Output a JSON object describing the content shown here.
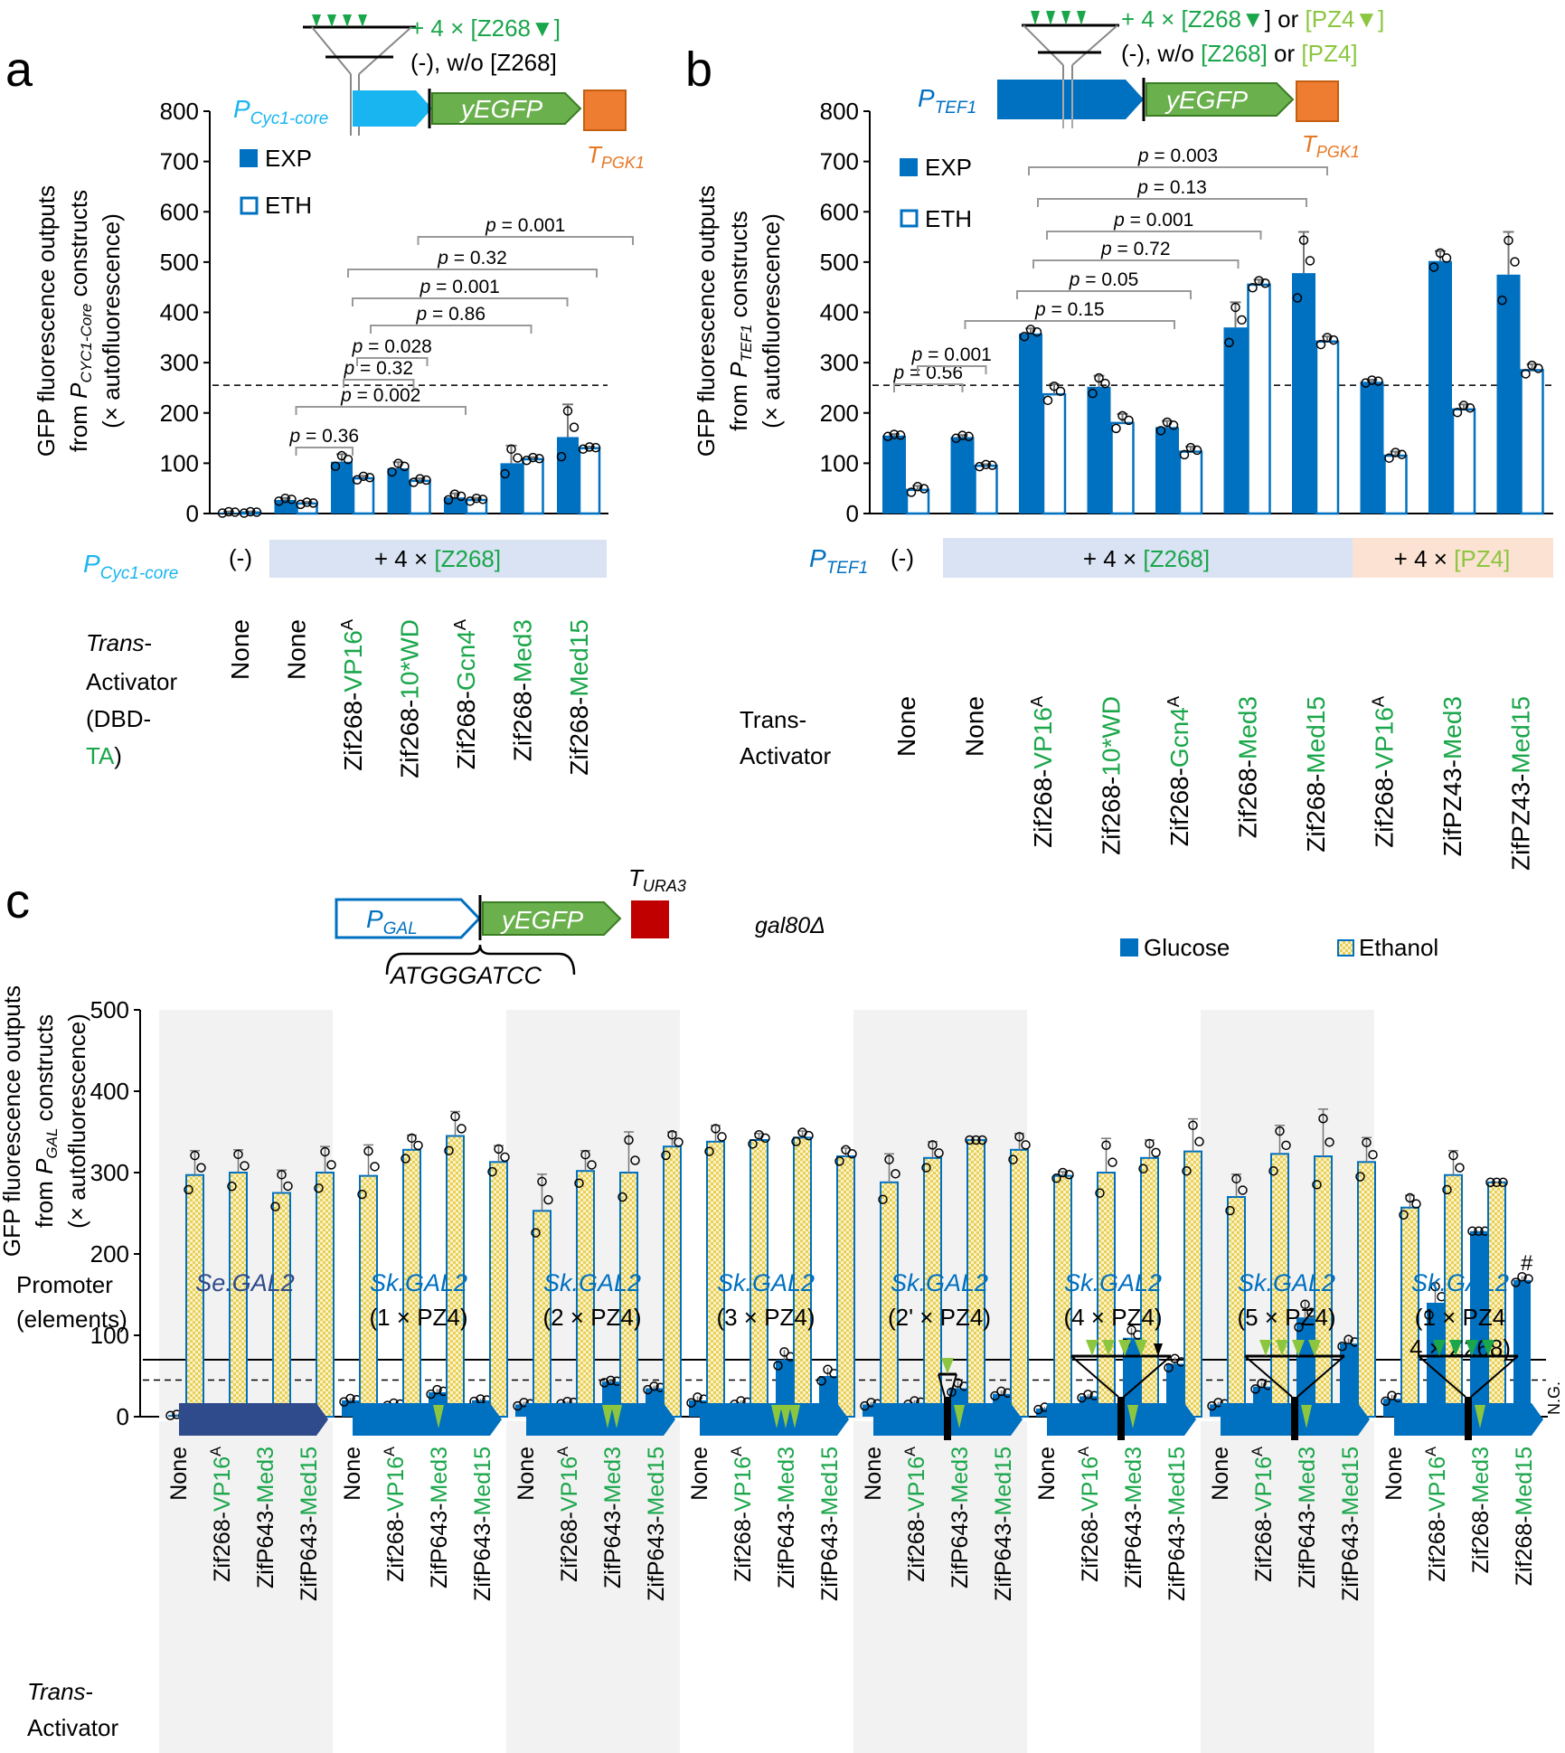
{
  "panels": {
    "a": "a",
    "b": "b",
    "c": "c"
  },
  "chart_data": [
    {
      "type": "bar",
      "panel": "a",
      "ylabel": "GFP fluorescence outputs from PCYC1-Core constructs (× autofluorescence)",
      "ylim": [
        0,
        800
      ],
      "yticks": [
        "0",
        "100",
        "200",
        "300",
        "400",
        "500",
        "600",
        "700",
        "800"
      ],
      "threshold_dashed": 255,
      "legend": [
        "EXP",
        "ETH"
      ],
      "promoter_label": "PCyc1-core",
      "promoter_main": "P",
      "promoter_sub": "Cyc1-core",
      "neg_label": "(-)",
      "element_band": "+ 4 × [Z268]",
      "xlabel": "Trans-Activator (DBD-TA)",
      "xlabel_lines": [
        "Trans-",
        "Activator",
        "(DBD-",
        "TA)"
      ],
      "categories": [
        "None",
        "None",
        "Zif268-VP16A",
        "Zif268-10*WD",
        "Zif268-Gcn4A",
        "Zif268-Med3",
        "Zif268-Med15"
      ],
      "series": [
        {
          "name": "EXP",
          "values": [
            2,
            27,
            103,
            90,
            32,
            100,
            152
          ],
          "err": [
            2,
            4,
            15,
            12,
            8,
            35,
            65
          ]
        },
        {
          "name": "ETH",
          "values": [
            2,
            20,
            70,
            65,
            27,
            108,
            130
          ],
          "err": [
            2,
            3,
            5,
            5,
            4,
            4,
            3
          ]
        }
      ],
      "pvalues": [
        "p = 0.36",
        "p = 0.002",
        "p = 0.32",
        "p = 0.028",
        "p = 0.86",
        "p = 0.001",
        "p = 0.32",
        "p = 0.001"
      ],
      "construct": {
        "gene": "yEGFP",
        "terminator": "TPGK1",
        "term_main": "T",
        "term_sub": "PGK1",
        "insert_line1": "+ 4 × [Z268",
        "insert_line1_end": "]",
        "insert_line2": "(-), w/o [Z268]"
      }
    },
    {
      "type": "bar",
      "panel": "b",
      "ylabel": "GFP fluorescence outputs from PTEF1 constructs (× autofluorescence)",
      "ylim": [
        0,
        800
      ],
      "yticks": [
        "0",
        "100",
        "200",
        "300",
        "400",
        "500",
        "600",
        "700",
        "800"
      ],
      "threshold_dashed": 255,
      "legend": [
        "EXP",
        "ETH"
      ],
      "promoter_label": "PTEF1",
      "promoter_main": "P",
      "promoter_sub": "TEF1",
      "neg_label": "(-)",
      "element_band1": "+ 4 × [Z268]",
      "element_band2": "+ 4 × [PZ4]",
      "xlabel": "Trans-Activator",
      "xlabel_lines": [
        "Trans-",
        "Activator"
      ],
      "categories": [
        "None",
        "None",
        "Zif268-VP16A",
        "Zif268-10*WD",
        "Zif268-Gcn4A",
        "Zif268-Med3",
        "Zif268-Med15",
        "Zif268-VP16A",
        "ZifPZ43-Med3",
        "ZifPZ43-Med15"
      ],
      "series": [
        {
          "name": "EXP",
          "values": [
            155,
            152,
            358,
            252,
            172,
            370,
            478,
            262,
            502,
            475
          ],
          "err": [
            3,
            4,
            10,
            22,
            12,
            50,
            82,
            4,
            20,
            85
          ]
        },
        {
          "name": "ETH",
          "values": [
            47,
            95,
            237,
            180,
            123,
            455,
            342,
            115,
            207,
            285
          ],
          "err": [
            8,
            3,
            20,
            18,
            10,
            10,
            10,
            8,
            10,
            12
          ]
        }
      ],
      "pvalues": [
        "p = 0.56",
        "p = 0.001",
        "p = 0.15",
        "p = 0.05",
        "p = 0.72",
        "p = 0.001",
        "p = 0.13",
        "p = 0.003"
      ],
      "construct": {
        "gene": "yEGFP",
        "terminator": "TPGK1",
        "term_main": "T",
        "term_sub": "PGK1",
        "insert_line1a": "+ 4 × [Z268",
        "insert_line1b": "] or ",
        "insert_line1c": "[PZ4",
        "insert_line1d": "]",
        "insert_line2a": "(-), w/o ",
        "insert_line2b": "[Z268]",
        "insert_line2c": " or ",
        "insert_line2d": "[PZ4]"
      }
    },
    {
      "type": "bar",
      "panel": "c",
      "ylabel": "GFP fluorescence outputs from PGAL constructs (× autofluorescence)",
      "ylim": [
        0,
        500
      ],
      "yticks": [
        "0",
        "100",
        "200",
        "300",
        "400",
        "500"
      ],
      "threshold_solid": 70,
      "threshold_dashed": 45,
      "legend": [
        "Glucose",
        "Ethanol"
      ],
      "strain": "gal80Δ",
      "construct": {
        "promoter": "PGAL",
        "prom_main": "P",
        "prom_sub": "GAL",
        "gene": "yEGFP",
        "terminator": "TURA3",
        "term_main": "T",
        "term_sub": "URA3",
        "junction": "ATGGGATCC"
      },
      "xlabel_lines": [
        "Trans-",
        "Activator"
      ],
      "promoter_title": [
        "Promoter",
        "(elements)"
      ],
      "groups": [
        {
          "promoter": "Se.GAL2",
          "elements": ""
        },
        {
          "promoter": "Sk.GAL2",
          "elements": "(1 × PZ4)"
        },
        {
          "promoter": "Sk.GAL2",
          "elements": "(2 × PZ4)"
        },
        {
          "promoter": "Sk.GAL2",
          "elements": "(3 × PZ4)"
        },
        {
          "promoter": "Sk.GAL2",
          "elements": "(2' × PZ4)"
        },
        {
          "promoter": "Sk.GAL2",
          "elements": "(4 × PZ4)"
        },
        {
          "promoter": "Sk.GAL2",
          "elements": "(5 × PZ4)"
        },
        {
          "promoter": "Sk.GAL2",
          "elements": "(1 × PZ4 4 × Z268)",
          "elements_l1": "(1 × PZ4",
          "elements_l2": "4 × Z268)"
        }
      ],
      "activators": [
        "None",
        "Zif268-VP16A",
        "ZifP643-Med3",
        "ZifP643-Med15"
      ],
      "activators_last": [
        "None",
        "Zif268-VP16A",
        "Zif268-Med3",
        "Zif268-Med15"
      ],
      "series": [
        {
          "name": "Glucose",
          "values": [
            2,
            5,
            1,
            3,
            20,
            15,
            30,
            20,
            15,
            17,
            43,
            35,
            20,
            17,
            70,
            50,
            15,
            17,
            35,
            28,
            10,
            25,
            97,
            65,
            15,
            37,
            122,
            90,
            22,
            140,
            228,
            168
          ]
        },
        {
          "name": "Ethanol",
          "values": [
            297,
            300,
            275,
            300,
            296,
            328,
            345,
            313,
            253,
            302,
            300,
            332,
            338,
            340,
            343,
            320,
            288,
            318,
            340,
            328,
            296,
            300,
            318,
            326,
            270,
            323,
            320,
            313,
            257,
            297,
            288,
            null
          ]
        }
      ],
      "err_eth": [
        30,
        28,
        28,
        32,
        38,
        18,
        30,
        20,
        45,
        25,
        50,
        18,
        20,
        8,
        8,
        10,
        35,
        20,
        0,
        20,
        5,
        42,
        22,
        40,
        28,
        35,
        58,
        30,
        15,
        30,
        0,
        0
      ],
      "err_glu": [
        1,
        1,
        1,
        1,
        3,
        2,
        4,
        2,
        3,
        2,
        2,
        3,
        5,
        3,
        12,
        10,
        3,
        3,
        8,
        4,
        2,
        3,
        12,
        8,
        3,
        5,
        20,
        6,
        5,
        25,
        0,
        5
      ],
      "annotation_hash": "#",
      "ng_label": "N.G."
    }
  ]
}
